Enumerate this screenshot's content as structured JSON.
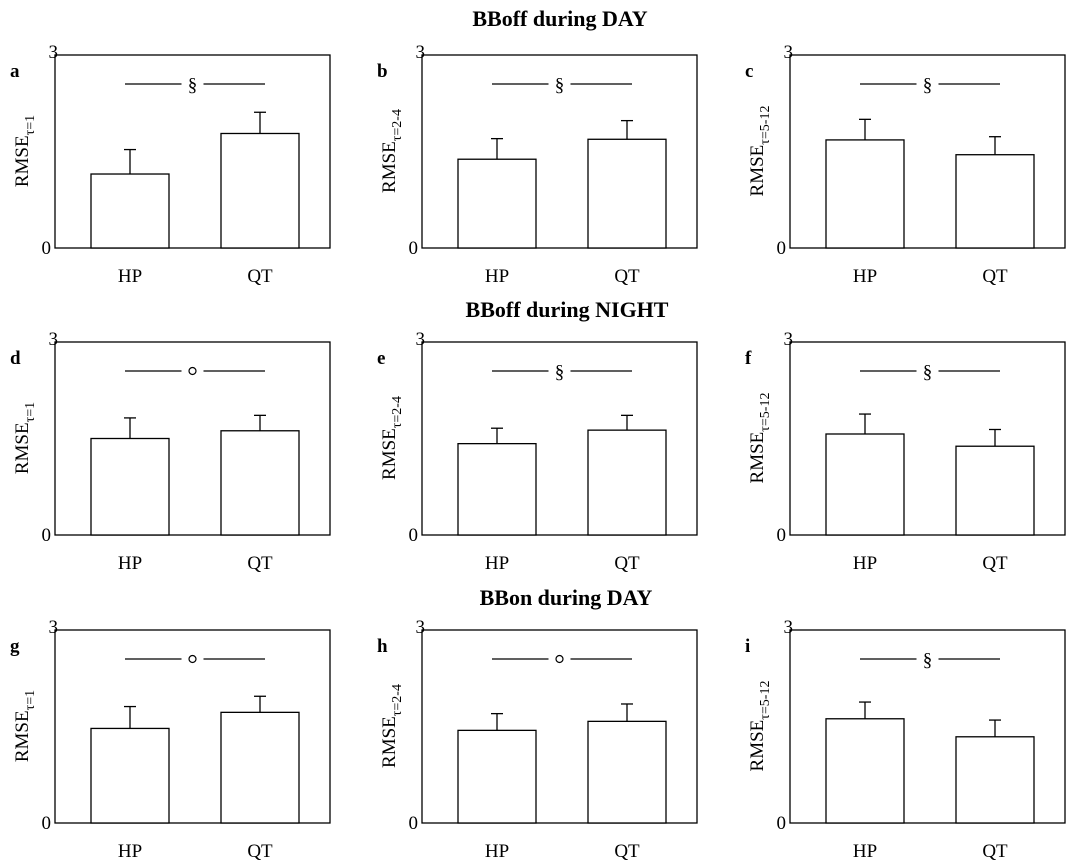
{
  "figure": {
    "section_titles": [
      "BBoff during DAY",
      "BBoff during NIGHT",
      "BBon during DAY"
    ]
  },
  "chart_data": [
    {
      "type": "bar",
      "panel": "a",
      "ylabel_main": "RMSE",
      "ylabel_sub": "τ=1",
      "categories": [
        "HP",
        "QT"
      ],
      "values": [
        1.15,
        1.78
      ],
      "errors": [
        0.38,
        0.33
      ],
      "ylim": [
        0,
        3
      ],
      "yticks": [
        "0",
        "3"
      ],
      "significance": "§",
      "grid": false
    },
    {
      "type": "bar",
      "panel": "b",
      "ylabel_main": "RMSE",
      "ylabel_sub": "τ=2-4",
      "categories": [
        "HP",
        "QT"
      ],
      "values": [
        1.38,
        1.69
      ],
      "errors": [
        0.32,
        0.29
      ],
      "ylim": [
        0,
        3
      ],
      "yticks": [
        "0",
        "3"
      ],
      "significance": "§",
      "grid": false
    },
    {
      "type": "bar",
      "panel": "c",
      "ylabel_main": "RMSE",
      "ylabel_sub": "τ=5-12",
      "categories": [
        "HP",
        "QT"
      ],
      "values": [
        1.68,
        1.45
      ],
      "errors": [
        0.32,
        0.28
      ],
      "ylim": [
        0,
        3
      ],
      "yticks": [
        "0",
        "3"
      ],
      "significance": "§",
      "grid": false
    },
    {
      "type": "bar",
      "panel": "d",
      "ylabel_main": "RMSE",
      "ylabel_sub": "τ=1",
      "categories": [
        "HP",
        "QT"
      ],
      "values": [
        1.5,
        1.62
      ],
      "errors": [
        0.32,
        0.24
      ],
      "ylim": [
        0,
        3
      ],
      "yticks": [
        "0",
        "3"
      ],
      "significance": "○",
      "grid": false
    },
    {
      "type": "bar",
      "panel": "e",
      "ylabel_main": "RMSE",
      "ylabel_sub": "τ=2-4",
      "categories": [
        "HP",
        "QT"
      ],
      "values": [
        1.42,
        1.63
      ],
      "errors": [
        0.24,
        0.23
      ],
      "ylim": [
        0,
        3
      ],
      "yticks": [
        "0",
        "3"
      ],
      "significance": "§",
      "grid": false
    },
    {
      "type": "bar",
      "panel": "f",
      "ylabel_main": "RMSE",
      "ylabel_sub": "τ=5-12",
      "categories": [
        "HP",
        "QT"
      ],
      "values": [
        1.57,
        1.38
      ],
      "errors": [
        0.31,
        0.26
      ],
      "ylim": [
        0,
        3
      ],
      "yticks": [
        "0",
        "3"
      ],
      "significance": "§",
      "grid": false
    },
    {
      "type": "bar",
      "panel": "g",
      "ylabel_main": "RMSE",
      "ylabel_sub": "τ=1",
      "categories": [
        "HP",
        "QT"
      ],
      "values": [
        1.47,
        1.72
      ],
      "errors": [
        0.34,
        0.25
      ],
      "ylim": [
        0,
        3
      ],
      "yticks": [
        "0",
        "3"
      ],
      "significance": "○",
      "grid": false
    },
    {
      "type": "bar",
      "panel": "h",
      "ylabel_main": "RMSE",
      "ylabel_sub": "τ=2-4",
      "categories": [
        "HP",
        "QT"
      ],
      "values": [
        1.44,
        1.58
      ],
      "errors": [
        0.26,
        0.27
      ],
      "ylim": [
        0,
        3
      ],
      "yticks": [
        "0",
        "3"
      ],
      "significance": "○",
      "grid": false
    },
    {
      "type": "bar",
      "panel": "i",
      "ylabel_main": "RMSE",
      "ylabel_sub": "τ=5-12",
      "categories": [
        "HP",
        "QT"
      ],
      "values": [
        1.62,
        1.34
      ],
      "errors": [
        0.26,
        0.26
      ],
      "ylim": [
        0,
        3
      ],
      "yticks": [
        "0",
        "3"
      ],
      "significance": "§",
      "grid": false
    }
  ]
}
